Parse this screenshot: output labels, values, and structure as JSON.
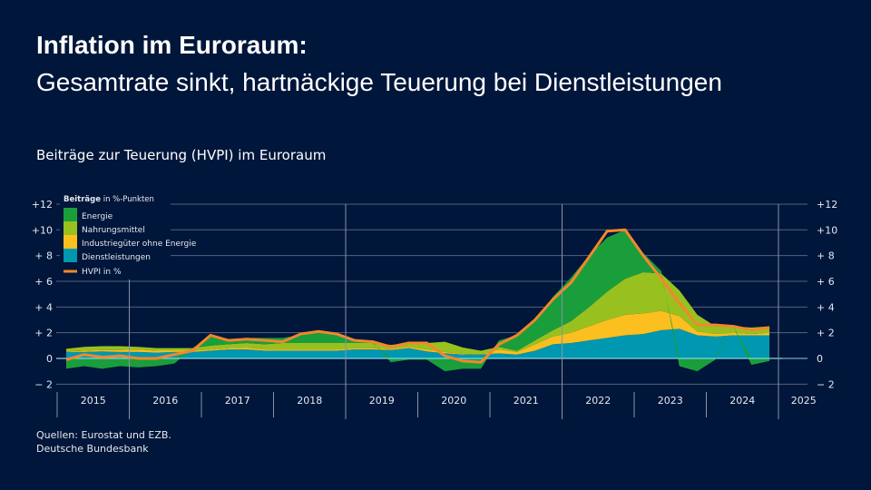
{
  "title_bold": "Inflation im Euroraum:",
  "title": "Gesamtrate sinkt, hartnäckige Teuerung bei Dienstleistungen",
  "subtitle": "Beiträge zur Teuerung (HVPI) im Euroraum",
  "sources": [
    "Quellen: Eurostat und EZB.",
    "Deutsche Bundesbank"
  ],
  "chart_data": {
    "type": "area",
    "legend_title_bold": "Beiträge",
    "legend_title": "in %-Punkten",
    "legend_position": "top-left",
    "ylim": [
      -2,
      12
    ],
    "yticks": [
      "− 2",
      "0",
      "+ 2",
      "+ 4",
      "+ 6",
      "+ 8",
      "+10",
      "+12"
    ],
    "ytick_values": [
      -2,
      0,
      2,
      4,
      6,
      8,
      10,
      12
    ],
    "years": [
      "2015",
      "2016",
      "2017",
      "2018",
      "2019",
      "2020",
      "2021",
      "2022",
      "2023",
      "2024",
      "2025"
    ],
    "x_note": "quarters 2015Q1–2024Q4",
    "grid": true,
    "colors": {
      "Energie": "#1a9e3c",
      "Nahrungsmittel": "#98c11f",
      "Industriegüter ohne Energie": "#fbbf1f",
      "Dienstleistungen": "#0097b0",
      "HVPI": "#f5862b"
    },
    "series": [
      {
        "name": "Dienstleistungen",
        "values": [
          0.5,
          0.5,
          0.55,
          0.5,
          0.5,
          0.45,
          0.5,
          0.5,
          0.6,
          0.7,
          0.7,
          0.6,
          0.6,
          0.6,
          0.6,
          0.6,
          0.7,
          0.7,
          0.65,
          0.8,
          0.55,
          0.4,
          0.3,
          0.3,
          0.4,
          0.3,
          0.6,
          1.1,
          1.2,
          1.4,
          1.6,
          1.8,
          1.9,
          2.2,
          2.3,
          1.8,
          1.7,
          1.8,
          1.8,
          1.8
        ]
      },
      {
        "name": "Industriegüter ohne Energie",
        "values": [
          0.05,
          0.1,
          0.1,
          0.15,
          0.2,
          0.15,
          0.1,
          0.1,
          0.1,
          0.1,
          0.15,
          0.1,
          0.1,
          0.1,
          0.1,
          0.1,
          0.1,
          0.1,
          0.1,
          0.1,
          0.15,
          0.1,
          0.05,
          0.0,
          0.3,
          0.2,
          0.5,
          0.6,
          0.8,
          1.1,
          1.4,
          1.6,
          1.6,
          1.5,
          1.0,
          0.3,
          0.2,
          0.2,
          0.1,
          0.2
        ]
      },
      {
        "name": "Nahrungsmittel",
        "values": [
          0.2,
          0.3,
          0.3,
          0.3,
          0.2,
          0.2,
          0.2,
          0.2,
          0.3,
          0.3,
          0.35,
          0.4,
          0.5,
          0.5,
          0.5,
          0.5,
          0.4,
          0.4,
          0.3,
          0.3,
          0.5,
          0.8,
          0.5,
          0.3,
          0.2,
          0.1,
          0.3,
          0.5,
          0.9,
          1.5,
          2.2,
          2.8,
          3.2,
          2.9,
          2.0,
          1.3,
          0.6,
          0.5,
          0.5,
          0.5
        ]
      },
      {
        "name": "Energie",
        "values": [
          -0.8,
          -0.6,
          -0.8,
          -0.6,
          -0.7,
          -0.6,
          -0.4,
          0.0,
          0.7,
          0.3,
          0.4,
          0.5,
          0.4,
          0.6,
          0.9,
          0.8,
          0.3,
          0.1,
          -0.3,
          -0.1,
          -0.1,
          -1.0,
          -0.8,
          -0.8,
          0.5,
          1.2,
          1.6,
          2.6,
          3.4,
          4.0,
          4.2,
          3.8,
          1.5,
          0.2,
          -0.6,
          -1.0,
          -0.1,
          0.0,
          -0.5,
          -0.2
        ]
      },
      {
        "name": "HVPI",
        "label_bold": "HVPI",
        "label": "in %",
        "type": "line",
        "values": [
          -0.1,
          0.3,
          0.1,
          0.2,
          0.0,
          0.0,
          0.3,
          0.6,
          1.8,
          1.4,
          1.5,
          1.4,
          1.3,
          1.9,
          2.1,
          1.9,
          1.4,
          1.3,
          0.9,
          1.2,
          1.2,
          0.2,
          -0.2,
          -0.3,
          1.1,
          1.8,
          3.0,
          4.6,
          5.9,
          7.9,
          9.9,
          10.0,
          8.0,
          6.2,
          4.3,
          2.6,
          2.6,
          2.5,
          2.2,
          2.4
        ]
      }
    ]
  }
}
